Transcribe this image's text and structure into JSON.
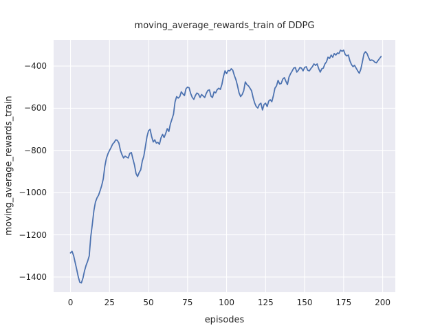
{
  "chart_data": {
    "type": "line",
    "title": "moving_average_rewards_train of DDPG",
    "xlabel": "episodes",
    "ylabel": "moving_average_rewards_train",
    "x_ticks": [
      0,
      25,
      50,
      75,
      100,
      125,
      150,
      175,
      200
    ],
    "y_ticks": [
      -400,
      -600,
      -800,
      -1000,
      -1200,
      -1400
    ],
    "xlim": [
      -10.8,
      208.1
    ],
    "ylim": [
      -1472,
      -276
    ],
    "grid": true,
    "legend": "none",
    "plot_bg_color": "#eaeaf2",
    "grid_color": "#ffffff",
    "line_color": "#4c72b0",
    "text_color": "#262626",
    "series": [
      {
        "name": "moving_average_rewards_train",
        "x_start": 0,
        "x_step": 1,
        "values": [
          -1286,
          -1278,
          -1299,
          -1331,
          -1364,
          -1400,
          -1425,
          -1428,
          -1405,
          -1370,
          -1345,
          -1325,
          -1300,
          -1210,
          -1150,
          -1085,
          -1045,
          -1025,
          -1012,
          -990,
          -967,
          -935,
          -875,
          -838,
          -816,
          -800,
          -786,
          -770,
          -762,
          -750,
          -752,
          -765,
          -800,
          -820,
          -836,
          -827,
          -832,
          -836,
          -814,
          -810,
          -840,
          -869,
          -910,
          -924,
          -905,
          -892,
          -850,
          -827,
          -781,
          -735,
          -707,
          -700,
          -735,
          -760,
          -750,
          -765,
          -762,
          -771,
          -740,
          -724,
          -739,
          -720,
          -697,
          -710,
          -675,
          -652,
          -628,
          -570,
          -545,
          -552,
          -545,
          -522,
          -532,
          -540,
          -508,
          -500,
          -503,
          -530,
          -548,
          -558,
          -540,
          -528,
          -533,
          -549,
          -535,
          -542,
          -549,
          -530,
          -516,
          -513,
          -543,
          -549,
          -522,
          -527,
          -512,
          -505,
          -511,
          -487,
          -450,
          -423,
          -436,
          -421,
          -423,
          -413,
          -420,
          -445,
          -465,
          -494,
          -527,
          -545,
          -535,
          -517,
          -475,
          -488,
          -494,
          -505,
          -517,
          -550,
          -575,
          -592,
          -599,
          -582,
          -576,
          -608,
          -582,
          -576,
          -592,
          -566,
          -560,
          -569,
          -540,
          -505,
          -494,
          -468,
          -485,
          -483,
          -462,
          -455,
          -472,
          -488,
          -452,
          -436,
          -424,
          -410,
          -407,
          -429,
          -420,
          -407,
          -410,
          -423,
          -407,
          -403,
          -420,
          -423,
          -412,
          -403,
          -390,
          -397,
          -390,
          -412,
          -429,
          -413,
          -410,
          -390,
          -380,
          -358,
          -364,
          -348,
          -358,
          -341,
          -348,
          -338,
          -341,
          -325,
          -330,
          -325,
          -345,
          -352,
          -348,
          -375,
          -393,
          -403,
          -397,
          -410,
          -423,
          -434,
          -415,
          -380,
          -342,
          -332,
          -341,
          -360,
          -374,
          -371,
          -374,
          -382,
          -385,
          -374,
          -364,
          -355
        ]
      }
    ]
  }
}
